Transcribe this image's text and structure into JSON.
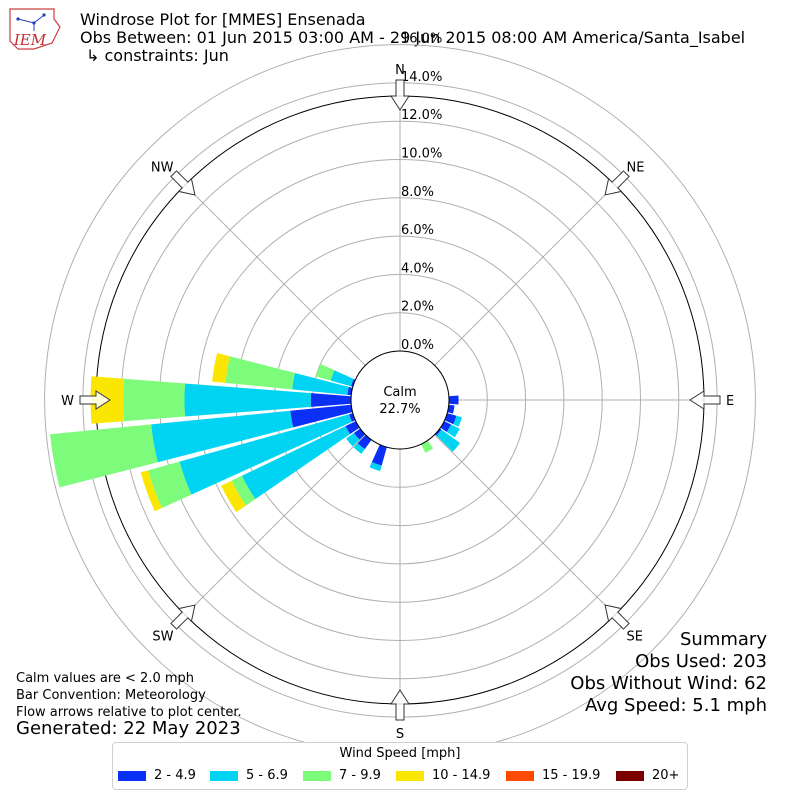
{
  "header": {
    "logo_text": "IEM",
    "title": "Windrose Plot for [MMES] Ensenada",
    "subtitle": "Obs Between: 01 Jun 2015 03:00 AM - 29 Jun 2015 08:00 AM America/Santa_Isabel",
    "constraints": "↳ constraints: Jun"
  },
  "summary": {
    "heading": "Summary",
    "obs_used": "Obs Used: 203",
    "obs_without_wind": "Obs Without Wind: 62",
    "avg_speed": "Avg Speed: 5.1 mph"
  },
  "notes": {
    "calm_note": "Calm values are < 2.0 mph",
    "bar_convention": "Bar Convention: Meteorology",
    "flow_arrows": "Flow arrows relative to plot center.",
    "generated": "Generated: 22 May 2023"
  },
  "legend": {
    "title": "Wind Speed [mph]",
    "items": [
      {
        "label": "2 - 4.9",
        "color": "#0a2ff5"
      },
      {
        "label": "5 - 6.9",
        "color": "#00d4f2"
      },
      {
        "label": "7 - 9.9",
        "color": "#7dfb7a"
      },
      {
        "label": "10 - 14.9",
        "color": "#fae600"
      },
      {
        "label": "15 - 19.9",
        "color": "#fd4a00"
      },
      {
        "label": "20+",
        "color": "#7a0000"
      }
    ]
  },
  "chart_data": {
    "type": "windrose",
    "calm_label": "Calm",
    "calm_value": "22.7%",
    "radial_ticks": [
      "0.0%",
      "2.0%",
      "4.0%",
      "6.0%",
      "8.0%",
      "10.0%",
      "12.0%",
      "14.0%",
      "16.0%"
    ],
    "radial_range": [
      0,
      16
    ],
    "compass_labels": [
      "N",
      "NE",
      "E",
      "SE",
      "S",
      "SW",
      "W",
      "NW"
    ],
    "grid": true,
    "legend_placement": "bottom-center",
    "sector_width_deg": 10,
    "bins": [
      "2 - 4.9",
      "5 - 6.9",
      "7 - 9.9",
      "10 - 14.9",
      "15 - 19.9",
      "20+"
    ],
    "sectors": [
      {
        "direction_deg": 90,
        "values": [
          0.5,
          0,
          0,
          0,
          0,
          0
        ]
      },
      {
        "direction_deg": 100,
        "values": [
          0.3,
          0,
          0,
          0,
          0,
          0
        ]
      },
      {
        "direction_deg": 110,
        "values": [
          0.5,
          0.3,
          0,
          0,
          0,
          0
        ]
      },
      {
        "direction_deg": 120,
        "values": [
          0.4,
          0.5,
          0,
          0,
          0,
          0
        ]
      },
      {
        "direction_deg": 130,
        "values": [
          0.1,
          1.2,
          0,
          0,
          0,
          0
        ]
      },
      {
        "direction_deg": 150,
        "values": [
          0,
          0,
          0.5,
          0,
          0,
          0
        ]
      },
      {
        "direction_deg": 200,
        "values": [
          1.0,
          0.3,
          0,
          0,
          0,
          0
        ]
      },
      {
        "direction_deg": 220,
        "values": [
          0.6,
          0.3,
          0,
          0,
          0,
          0
        ]
      },
      {
        "direction_deg": 230,
        "values": [
          0.4,
          0.5,
          0,
          0,
          0,
          0
        ]
      },
      {
        "direction_deg": 240,
        "values": [
          0.6,
          6.0,
          0.6,
          0.6,
          0,
          0
        ]
      },
      {
        "direction_deg": 250,
        "values": [
          0.2,
          9.2,
          1.7,
          0.4,
          0,
          0
        ]
      },
      {
        "direction_deg": 260,
        "values": [
          3.2,
          7.3,
          5.3,
          0,
          0,
          0
        ]
      },
      {
        "direction_deg": 270,
        "values": [
          2.1,
          6.6,
          3.2,
          1.7,
          0,
          0
        ]
      },
      {
        "direction_deg": 280,
        "values": [
          0.2,
          2.9,
          3.5,
          0.7,
          0,
          0
        ]
      },
      {
        "direction_deg": 290,
        "values": [
          0.1,
          1.1,
          0.8,
          0,
          0,
          0
        ]
      }
    ]
  }
}
